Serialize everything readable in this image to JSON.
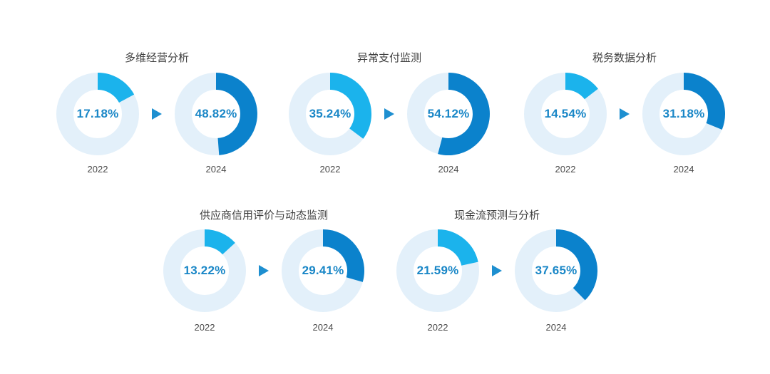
{
  "chart_data": [
    {
      "type": "donut",
      "title": "多维经营分析",
      "categories": [
        "2022",
        "2024"
      ],
      "values": [
        17.18,
        48.82
      ],
      "value_labels": [
        "17.18%",
        "48.82%"
      ]
    },
    {
      "type": "donut",
      "title": "异常支付监测",
      "categories": [
        "2022",
        "2024"
      ],
      "values": [
        35.24,
        54.12
      ],
      "value_labels": [
        "35.24%",
        "54.12%"
      ]
    },
    {
      "type": "donut",
      "title": "税务数据分析",
      "categories": [
        "2022",
        "2024"
      ],
      "values": [
        14.54,
        31.18
      ],
      "value_labels": [
        "14.54%",
        "31.18%"
      ]
    },
    {
      "type": "donut",
      "title": "供应商信用评价与动态监测",
      "categories": [
        "2022",
        "2024"
      ],
      "values": [
        13.22,
        29.41
      ],
      "value_labels": [
        "13.22%",
        "29.41%"
      ]
    },
    {
      "type": "donut",
      "title": "现金流预测与分析",
      "categories": [
        "2022",
        "2024"
      ],
      "values": [
        21.59,
        37.65
      ],
      "value_labels": [
        "21.59%",
        "37.65%"
      ]
    }
  ],
  "colors": {
    "track": "#e3f0fa",
    "value_2022": "#1bb3ec",
    "value_2024": "#0b82cc",
    "label_text": "#1a87c7",
    "arrow": "#1e8fd0"
  }
}
